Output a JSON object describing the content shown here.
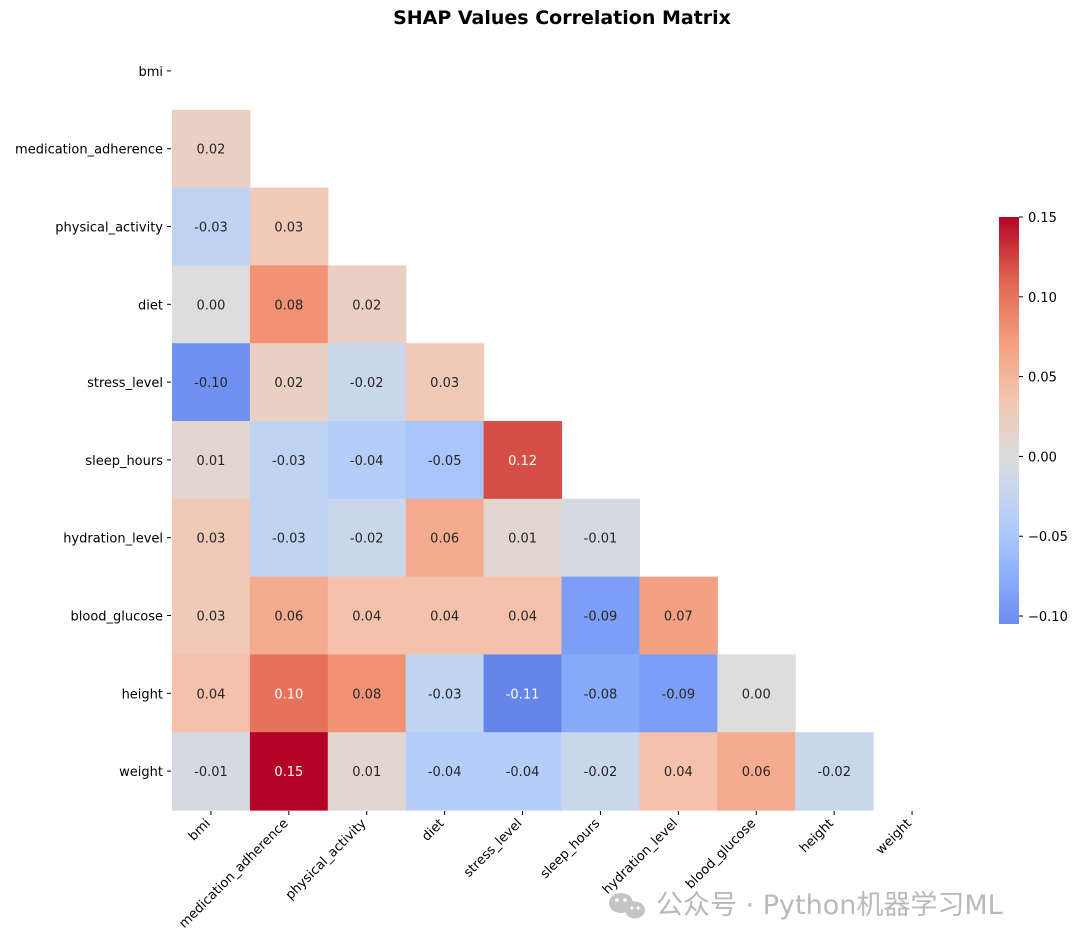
{
  "chart_data": {
    "type": "heatmap",
    "title": "SHAP Values Correlation Matrix",
    "rows": [
      "bmi",
      "medication_adherence",
      "physical_activity",
      "diet",
      "stress_level",
      "sleep_hours",
      "hydration_level",
      "blood_glucose",
      "height",
      "weight"
    ],
    "columns": [
      "bmi",
      "medication_adherence",
      "physical_activity",
      "diet",
      "stress_level",
      "sleep_hours",
      "hydration_level",
      "blood_glucose",
      "height",
      "weight"
    ],
    "mask": "upper triangle including diagonal",
    "values": [
      [],
      [
        0.02
      ],
      [
        -0.03,
        0.03
      ],
      [
        0.0,
        0.08,
        0.02
      ],
      [
        -0.1,
        0.02,
        -0.02,
        0.03
      ],
      [
        0.01,
        -0.03,
        -0.04,
        -0.05,
        0.12
      ],
      [
        0.03,
        -0.03,
        -0.02,
        0.06,
        0.01,
        -0.01
      ],
      [
        0.03,
        0.06,
        0.04,
        0.04,
        0.04,
        -0.09,
        0.07
      ],
      [
        0.04,
        0.1,
        0.08,
        -0.03,
        -0.11,
        -0.08,
        -0.09,
        0.0
      ],
      [
        -0.01,
        0.15,
        0.01,
        -0.04,
        -0.04,
        -0.02,
        0.04,
        0.06,
        -0.02
      ]
    ],
    "colormap": "coolwarm",
    "colorbar": {
      "min": -0.105,
      "max": 0.15,
      "center": 0.0,
      "ticks": [
        "−0.10",
        "−0.05",
        "0.00",
        "0.05",
        "0.10",
        "0.15"
      ],
      "tick_values": [
        -0.1,
        -0.05,
        0.0,
        0.05,
        0.1,
        0.15
      ]
    }
  },
  "watermark": {
    "text": "公众号 · Python机器学习ML",
    "icon": "wechat-icon"
  }
}
